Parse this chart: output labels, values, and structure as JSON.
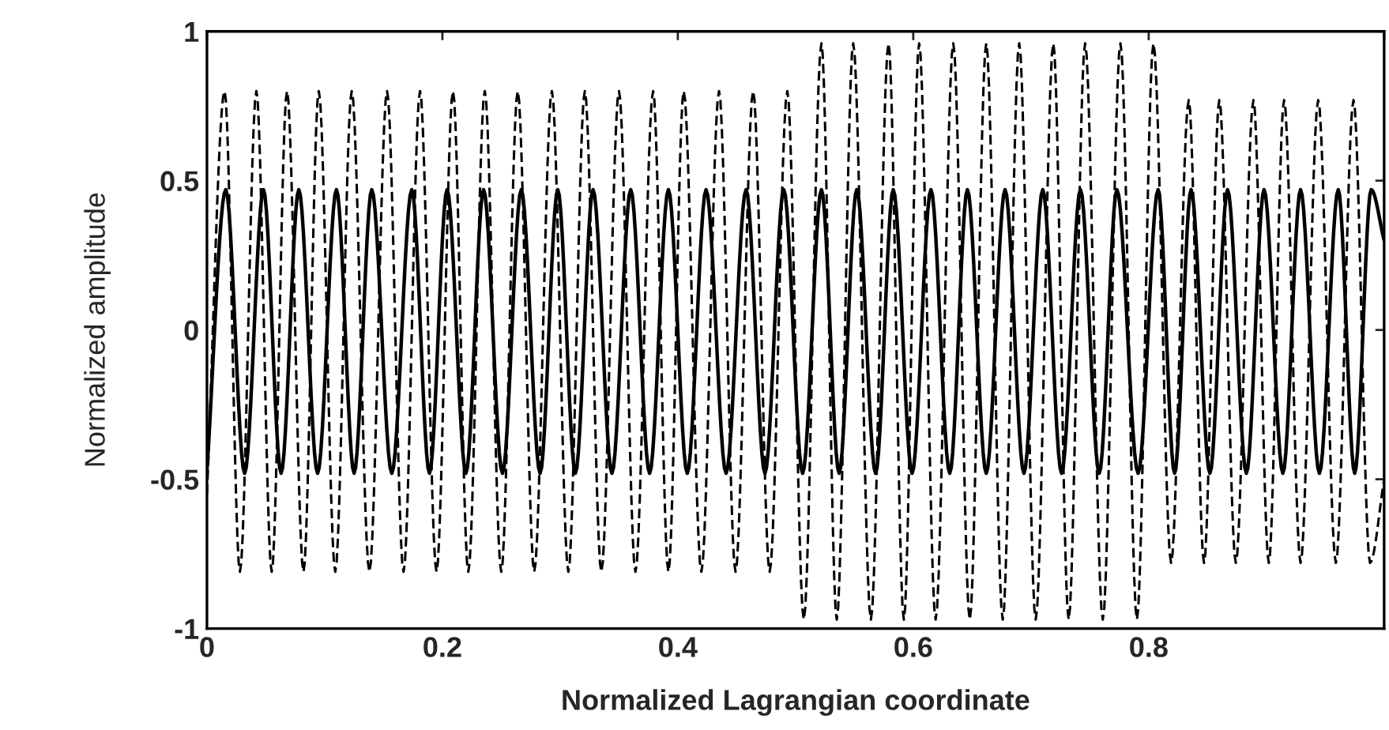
{
  "chart_data": {
    "type": "line",
    "xlabel": "Normalized Lagrangian coordinate",
    "ylabel": "Normalized amplitude",
    "xlim": [
      0,
      1
    ],
    "ylim": [
      -1,
      1
    ],
    "xticks": [
      0,
      0.2,
      0.4,
      0.6,
      0.8,
      {
        "value": 1,
        "label": null
      }
    ],
    "yticks": [
      -1,
      -0.5,
      0,
      0.5,
      1
    ],
    "grid": false,
    "legend": false,
    "marker": "none",
    "series": [
      {
        "color": "#000000",
        "line_style": "solid",
        "x": [
          0,
          0.016,
          0.032,
          0.048,
          0.063,
          0.078,
          0.094,
          0.11,
          0.125,
          0.14,
          0.157,
          0.174,
          0.189,
          0.204,
          0.22,
          0.235,
          0.251,
          0.267,
          0.283,
          0.298,
          0.313,
          0.328,
          0.344,
          0.36,
          0.376,
          0.392,
          0.408,
          0.424,
          0.441,
          0.458,
          0.474,
          0.49,
          0.506,
          0.522,
          0.537,
          0.552,
          0.568,
          0.583,
          0.599,
          0.615,
          0.631,
          0.646,
          0.662,
          0.678,
          0.694,
          0.71,
          0.726,
          0.742,
          0.758,
          0.773,
          0.791,
          0.808,
          0.822,
          0.836,
          0.852,
          0.867,
          0.883,
          0.898,
          0.914,
          0.929,
          0.945,
          0.961,
          0.975,
          0.989,
          1.0
        ],
        "values": [
          -0.47,
          0.47,
          -0.48,
          0.47,
          -0.48,
          0.47,
          -0.48,
          0.47,
          -0.48,
          0.47,
          -0.48,
          0.47,
          -0.48,
          0.47,
          -0.48,
          0.47,
          -0.48,
          0.47,
          -0.48,
          0.47,
          -0.48,
          0.47,
          -0.48,
          0.47,
          -0.48,
          0.47,
          -0.48,
          0.47,
          -0.48,
          0.47,
          -0.48,
          0.47,
          -0.48,
          0.47,
          -0.48,
          0.47,
          -0.48,
          0.47,
          -0.48,
          0.47,
          -0.48,
          0.47,
          -0.48,
          0.47,
          -0.48,
          0.47,
          -0.48,
          0.47,
          -0.48,
          0.47,
          -0.48,
          0.47,
          -0.48,
          0.47,
          -0.48,
          0.47,
          -0.48,
          0.47,
          -0.48,
          0.47,
          -0.48,
          0.47,
          -0.48,
          0.47,
          0.3
        ]
      },
      {
        "color": "#000000",
        "line_style": "dashed",
        "x": [
          0,
          0.015,
          0.028,
          0.042,
          0.055,
          0.068,
          0.082,
          0.095,
          0.109,
          0.123,
          0.138,
          0.153,
          0.167,
          0.181,
          0.195,
          0.209,
          0.222,
          0.236,
          0.25,
          0.264,
          0.278,
          0.293,
          0.307,
          0.321,
          0.335,
          0.35,
          0.364,
          0.379,
          0.392,
          0.405,
          0.42,
          0.435,
          0.449,
          0.464,
          0.478,
          0.493,
          0.507,
          0.522,
          0.535,
          0.549,
          0.564,
          0.579,
          0.592,
          0.605,
          0.619,
          0.634,
          0.648,
          0.662,
          0.676,
          0.69,
          0.704,
          0.719,
          0.732,
          0.746,
          0.761,
          0.776,
          0.79,
          0.804,
          0.819,
          0.834,
          0.847,
          0.86,
          0.874,
          0.889,
          0.902,
          0.915,
          0.929,
          0.944,
          0.959,
          0.974,
          0.988,
          1.0
        ],
        "values": [
          -0.55,
          0.8,
          -0.81,
          0.8,
          -0.81,
          0.8,
          -0.81,
          0.8,
          -0.81,
          0.8,
          -0.81,
          0.8,
          -0.81,
          0.8,
          -0.81,
          0.8,
          -0.81,
          0.8,
          -0.81,
          0.8,
          -0.81,
          0.8,
          -0.81,
          0.8,
          -0.81,
          0.8,
          -0.81,
          0.8,
          -0.81,
          0.8,
          -0.81,
          0.8,
          -0.81,
          0.8,
          -0.81,
          0.8,
          -0.97,
          0.96,
          -0.97,
          0.96,
          -0.97,
          0.96,
          -0.97,
          0.96,
          -0.97,
          0.96,
          -0.97,
          0.96,
          -0.97,
          0.96,
          -0.97,
          0.96,
          -0.97,
          0.96,
          -0.97,
          0.96,
          -0.97,
          0.96,
          -0.78,
          0.77,
          -0.78,
          0.77,
          -0.78,
          0.77,
          -0.78,
          0.77,
          -0.78,
          0.77,
          -0.78,
          0.77,
          -0.78,
          -0.5
        ]
      }
    ]
  }
}
